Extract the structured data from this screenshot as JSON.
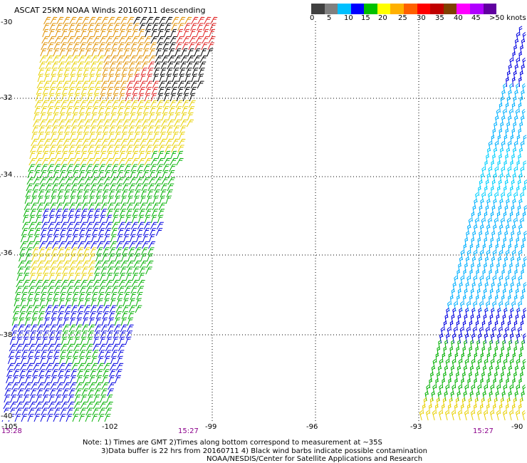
{
  "title": "ASCAT 25KM NOAA Winds 20160711 descending",
  "legend": {
    "colors": [
      "#404040",
      "#808080",
      "#00c0ff",
      "#0000ff",
      "#00c000",
      "#ffff00",
      "#ffb000",
      "#ff6000",
      "#ff0000",
      "#c00000",
      "#804000",
      "#ff00ff",
      "#b000ff",
      "#6000a0"
    ],
    "labels": [
      "0",
      "5",
      "10",
      "15",
      "20",
      "25",
      "30",
      "35",
      "40",
      "45",
      ">50 knots"
    ]
  },
  "axes": {
    "lat_labels": [
      "-30",
      "-32",
      "-34",
      "-36",
      "-38",
      "-40"
    ],
    "lon_labels": [
      "-105",
      "-102",
      "-99",
      "-96",
      "-93",
      "-90"
    ]
  },
  "pass_times": [
    "15:28",
    "15:27",
    "15:27"
  ],
  "notes": [
    "Note: 1) Times are GMT 2)Times along bottom correspond to measurement at ~35S",
    "3)Data buffer is 22 hrs from 20160711 4) Black wind barbs indicate possible contamination",
    "NOAA/NESDIS/Center for Satellite Applications and Research"
  ],
  "wind_colors": {
    "blue": "#0000e0",
    "green": "#00b000",
    "yellow": "#e8d000",
    "orange": "#e09000",
    "red": "#e02020",
    "black": "#000000",
    "lightblue": "#00b0ff",
    "cyan": "#00d0ff"
  }
}
